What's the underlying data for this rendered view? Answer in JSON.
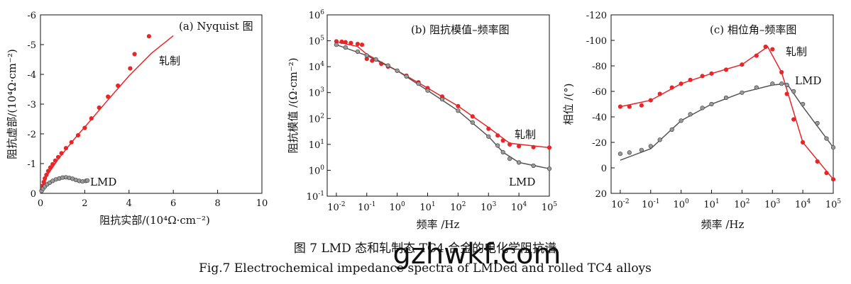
{
  "panels": [
    {
      "title": "(a) Nyquist 图",
      "xlabel": "阻抗实部/(10⁴Ω·cm⁻²)",
      "ylabel": "阻抗虚部/(10⁴Ω·cm⁻²)",
      "labels": {
        "rolled": "轧制",
        "lmd": "LMD"
      }
    },
    {
      "title": "(b) 阻抗模值–频率图",
      "xlabel": "频率 /Hz",
      "ylabel": "阻抗模值 /(Ω·cm⁻²)",
      "labels": {
        "rolled": "轧制",
        "lmd": "LMD"
      }
    },
    {
      "title": "(c) 相位角–频率图",
      "xlabel": "频率 /Hz",
      "ylabel": "相位 /(°)",
      "labels": {
        "rolled": "轧制",
        "lmd": "LMD"
      }
    }
  ],
  "caption": {
    "cn": "图 7 LMD 态和轧制态 TC4 合金的电化学阻抗谱",
    "en": "Fig.7 Electrochemical impedance spectra of LMDed and rolled TC4 alloys"
  },
  "watermark": "gzhwkf.com",
  "colors": {
    "rolled": "#e8262a",
    "lmd": "#555555",
    "lmd_fill": "#9a9a9a"
  },
  "chart_data": [
    {
      "type": "scatter",
      "title": "(a) Nyquist 图",
      "xlabel": "阻抗实部/(10⁴Ω·cm⁻²)",
      "ylabel": "阻抗虚部/(10⁴Ω·cm⁻²)",
      "xlim": [
        0,
        10
      ],
      "ylim": [
        0,
        -6
      ],
      "xticks": [
        0,
        2,
        4,
        6,
        8,
        10
      ],
      "yticks": [
        0,
        -1,
        -2,
        -3,
        -4,
        -5,
        -6
      ],
      "series": [
        {
          "name": "轧制",
          "points": [
            [
              0.05,
              -0.1
            ],
            [
              0.1,
              -0.25
            ],
            [
              0.15,
              -0.38
            ],
            [
              0.2,
              -0.5
            ],
            [
              0.27,
              -0.62
            ],
            [
              0.35,
              -0.75
            ],
            [
              0.45,
              -0.87
            ],
            [
              0.55,
              -0.98
            ],
            [
              0.67,
              -1.1
            ],
            [
              0.8,
              -1.22
            ],
            [
              0.95,
              -1.35
            ],
            [
              1.15,
              -1.52
            ],
            [
              1.4,
              -1.72
            ],
            [
              1.7,
              -1.95
            ],
            [
              2.0,
              -2.2
            ],
            [
              2.3,
              -2.52
            ],
            [
              2.65,
              -2.88
            ],
            [
              3.05,
              -3.25
            ],
            [
              3.5,
              -3.62
            ],
            [
              4.05,
              -4.2
            ],
            [
              4.25,
              -4.68
            ],
            [
              4.9,
              -5.28
            ]
          ],
          "fit": [
            [
              0,
              0
            ],
            [
              0.3,
              -0.6
            ],
            [
              0.8,
              -1.15
            ],
            [
              1.5,
              -1.8
            ],
            [
              2.2,
              -2.4
            ],
            [
              3.0,
              -3.1
            ],
            [
              4.0,
              -3.95
            ],
            [
              5.0,
              -4.7
            ],
            [
              6.0,
              -5.3
            ]
          ]
        },
        {
          "name": "LMD",
          "points": [
            [
              0.05,
              -0.08
            ],
            [
              0.12,
              -0.16
            ],
            [
              0.2,
              -0.23
            ],
            [
              0.3,
              -0.3
            ],
            [
              0.42,
              -0.36
            ],
            [
              0.55,
              -0.42
            ],
            [
              0.7,
              -0.47
            ],
            [
              0.85,
              -0.5
            ],
            [
              1.0,
              -0.53
            ],
            [
              1.15,
              -0.54
            ],
            [
              1.3,
              -0.52
            ],
            [
              1.45,
              -0.49
            ],
            [
              1.6,
              -0.45
            ],
            [
              1.75,
              -0.42
            ],
            [
              1.9,
              -0.4
            ],
            [
              2.05,
              -0.42
            ],
            [
              2.12,
              -0.43
            ]
          ],
          "fit": [
            [
              0,
              0
            ],
            [
              0.3,
              -0.3
            ],
            [
              0.7,
              -0.45
            ],
            [
              1.1,
              -0.5
            ],
            [
              1.5,
              -0.47
            ],
            [
              1.9,
              -0.4
            ],
            [
              2.15,
              -0.42
            ]
          ]
        }
      ]
    },
    {
      "type": "scatter",
      "title": "(b) 阻抗模值–频率图",
      "xlabel": "频率 /Hz",
      "ylabel": "阻抗模值 /(Ω·cm⁻²)",
      "xscale": "log",
      "yscale": "log",
      "xlim": [
        0.005,
        100000
      ],
      "ylim": [
        0.1,
        1000000
      ],
      "series": [
        {
          "name": "轧制",
          "points": [
            [
              0.01,
              95000
            ],
            [
              0.015,
              92000
            ],
            [
              0.02,
              88000
            ],
            [
              0.03,
              82000
            ],
            [
              0.05,
              75000
            ],
            [
              0.07,
              70000
            ],
            [
              0.1,
              20000
            ],
            [
              0.15,
              17000
            ],
            [
              0.3,
              13000
            ],
            [
              0.5,
              10000
            ],
            [
              1,
              7000
            ],
            [
              2,
              4500
            ],
            [
              5,
              2500
            ],
            [
              10,
              1500
            ],
            [
              30,
              700
            ],
            [
              100,
              300
            ],
            [
              300,
              120
            ],
            [
              1000,
              40
            ],
            [
              2000,
              22
            ],
            [
              3000,
              14
            ],
            [
              5000,
              10
            ],
            [
              10000,
              8.5
            ],
            [
              30000,
              7.8
            ],
            [
              100000,
              7.5
            ]
          ],
          "fit": [
            [
              0.01,
              90000
            ],
            [
              0.05,
              60000
            ],
            [
              0.1,
              30000
            ],
            [
              1,
              7000
            ],
            [
              10,
              1500
            ],
            [
              100,
              300
            ],
            [
              1000,
              45
            ],
            [
              5000,
              11
            ],
            [
              100000,
              7.5
            ]
          ]
        },
        {
          "name": "LMD",
          "points": [
            [
              0.01,
              70000
            ],
            [
              0.02,
              55000
            ],
            [
              0.05,
              38000
            ],
            [
              0.1,
              27000
            ],
            [
              0.2,
              19000
            ],
            [
              0.5,
              11000
            ],
            [
              1,
              7000
            ],
            [
              2,
              4200
            ],
            [
              5,
              2200
            ],
            [
              10,
              1200
            ],
            [
              30,
              550
            ],
            [
              100,
              200
            ],
            [
              300,
              70
            ],
            [
              1000,
              20
            ],
            [
              2000,
              9
            ],
            [
              3000,
              5
            ],
            [
              5000,
              2.8
            ],
            [
              10000,
              2
            ],
            [
              30000,
              1.5
            ],
            [
              100000,
              1.15
            ]
          ],
          "fit": [
            [
              0.01,
              70000
            ],
            [
              0.1,
              27000
            ],
            [
              1,
              7000
            ],
            [
              10,
              1200
            ],
            [
              100,
              200
            ],
            [
              1000,
              20
            ],
            [
              3000,
              5
            ],
            [
              10000,
              2
            ],
            [
              100000,
              1.15
            ]
          ]
        }
      ]
    },
    {
      "type": "scatter",
      "title": "(c) 相位角–频率图",
      "xlabel": "频率 /Hz",
      "ylabel": "相位 /(°)",
      "xscale": "log",
      "xlim": [
        0.005,
        100000
      ],
      "ylim": [
        20,
        -120
      ],
      "yticks": [
        20,
        0,
        -20,
        -40,
        -60,
        -80,
        -100,
        -120
      ],
      "series": [
        {
          "name": "轧制",
          "points": [
            [
              0.01,
              -48
            ],
            [
              0.02,
              -48
            ],
            [
              0.05,
              -49
            ],
            [
              0.1,
              -53
            ],
            [
              0.2,
              -58
            ],
            [
              0.5,
              -63
            ],
            [
              1,
              -66
            ],
            [
              2,
              -69
            ],
            [
              5,
              -72
            ],
            [
              10,
              -74
            ],
            [
              30,
              -77
            ],
            [
              100,
              -81
            ],
            [
              300,
              -88
            ],
            [
              600,
              -95
            ],
            [
              1000,
              -93
            ],
            [
              2000,
              -75
            ],
            [
              3000,
              -58
            ],
            [
              5000,
              -38
            ],
            [
              10000,
              -20
            ],
            [
              30000,
              -5
            ],
            [
              60000,
              4
            ],
            [
              100000,
              9
            ]
          ],
          "fit": [
            [
              0.01,
              -48
            ],
            [
              0.1,
              -53
            ],
            [
              1,
              -66
            ],
            [
              10,
              -74
            ],
            [
              100,
              -81
            ],
            [
              700,
              -95
            ],
            [
              2000,
              -75
            ],
            [
              10000,
              -20
            ],
            [
              100000,
              9
            ]
          ]
        },
        {
          "name": "LMD",
          "points": [
            [
              0.01,
              -11
            ],
            [
              0.02,
              -12
            ],
            [
              0.05,
              -14
            ],
            [
              0.1,
              -17
            ],
            [
              0.2,
              -22
            ],
            [
              0.5,
              -30
            ],
            [
              1,
              -37
            ],
            [
              2,
              -42
            ],
            [
              5,
              -47
            ],
            [
              10,
              -50
            ],
            [
              30,
              -55
            ],
            [
              100,
              -59
            ],
            [
              300,
              -63
            ],
            [
              1000,
              -66
            ],
            [
              2000,
              -66
            ],
            [
              3000,
              -65
            ],
            [
              5000,
              -60
            ],
            [
              10000,
              -50
            ],
            [
              30000,
              -35
            ],
            [
              60000,
              -23
            ],
            [
              100000,
              -16
            ]
          ],
          "fit": [
            [
              0.01,
              -6
            ],
            [
              0.1,
              -15
            ],
            [
              1,
              -37
            ],
            [
              10,
              -50
            ],
            [
              100,
              -59
            ],
            [
              1000,
              -65
            ],
            [
              3000,
              -66
            ],
            [
              10000,
              -48
            ],
            [
              100000,
              -16
            ]
          ]
        }
      ]
    }
  ]
}
